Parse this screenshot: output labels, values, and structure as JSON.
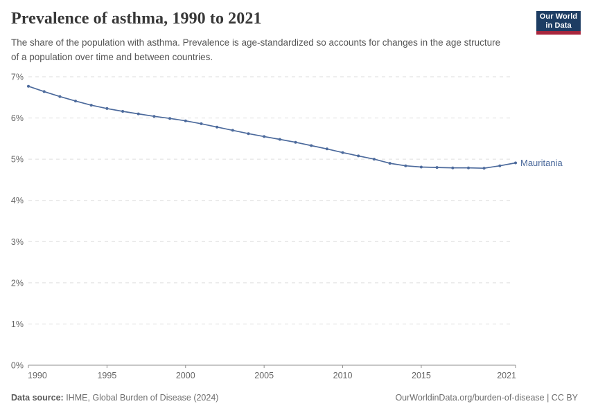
{
  "header": {
    "title": "Prevalence of asthma, 1990 to 2021",
    "subtitle": "The share of the population with asthma. Prevalence is age-standardized so accounts for changes in the age structure of a population over time and between countries.",
    "logo_line1": "Our World",
    "logo_line2": "in Data"
  },
  "chart_data": {
    "type": "line",
    "title": "Prevalence of asthma, 1990 to 2021",
    "xlabel": "",
    "ylabel": "",
    "xlim": [
      1990,
      2021
    ],
    "ylim": [
      0,
      7
    ],
    "grid": "horizontal-dashed",
    "legend_position": "end-of-line-label",
    "x_ticks": [
      1990,
      1995,
      2000,
      2005,
      2010,
      2015,
      2021
    ],
    "y_ticks": [
      0,
      1,
      2,
      3,
      4,
      5,
      6,
      7
    ],
    "y_tick_suffix": "%",
    "entity_label": "Mauritania",
    "series": [
      {
        "name": "Mauritania",
        "color": "#4C6A9C",
        "x": [
          1990,
          1991,
          1992,
          1993,
          1994,
          1995,
          1996,
          1997,
          1998,
          1999,
          2000,
          2001,
          2002,
          2003,
          2004,
          2005,
          2006,
          2007,
          2008,
          2009,
          2010,
          2011,
          2012,
          2013,
          2014,
          2015,
          2016,
          2017,
          2018,
          2019,
          2020,
          2021
        ],
        "values": [
          6.77,
          6.64,
          6.52,
          6.41,
          6.31,
          6.23,
          6.16,
          6.1,
          6.04,
          5.99,
          5.93,
          5.86,
          5.78,
          5.7,
          5.62,
          5.55,
          5.48,
          5.41,
          5.33,
          5.25,
          5.16,
          5.08,
          5.0,
          4.9,
          4.84,
          4.81,
          4.8,
          4.79,
          4.79,
          4.78,
          4.84,
          4.91
        ]
      }
    ]
  },
  "footer": {
    "datasource_label": "Data source:",
    "datasource_value": " IHME, Global Burden of Disease (2024)",
    "link_text": "OurWorldinData.org/burden-of-disease",
    "license_text": " | CC BY"
  },
  "colors": {
    "line": "#4C6A9C",
    "grid": "#dedede",
    "axis": "#8f8f8f",
    "tick_text": "#666666",
    "title": "#383838",
    "subtitle": "#555555",
    "footer": "#6e6e6e",
    "logo_bg": "#1d3d63",
    "logo_bar": "#a8263d"
  }
}
